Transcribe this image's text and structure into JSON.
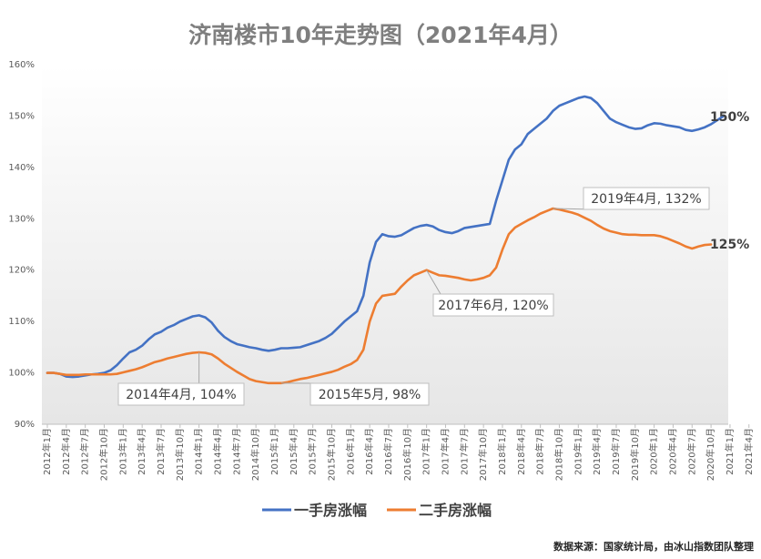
{
  "chart_data": {
    "type": "line",
    "title": "济南楼市10年走势图（2021年4月）",
    "source": "数据来源：国家统计局，由冰山指数团队整理",
    "ylim": [
      90,
      160
    ],
    "yticks": [
      "90%",
      "100%",
      "110%",
      "120%",
      "130%",
      "140%",
      "150%",
      "160%"
    ],
    "ytick_values": [
      90,
      100,
      110,
      120,
      130,
      140,
      150,
      160
    ],
    "xlabel": "",
    "ylabel": "",
    "grid": false,
    "legend_position": "bottom",
    "x_tick_labels": [
      "2012年1月",
      "2012年4月",
      "2012年7月",
      "2012年10月",
      "2013年1月",
      "2013年4月",
      "2013年7月",
      "2013年10月",
      "2014年1月",
      "2014年4月",
      "2014年7月",
      "2014年10月",
      "2015年1月",
      "2015年4月",
      "2015年7月",
      "2015年10月",
      "2016年1月",
      "2016年4月",
      "2016年7月",
      "2016年10月",
      "2017年1月",
      "2017年4月",
      "2017年7月",
      "2017年10月",
      "2018年1月",
      "2018年4月",
      "2018年7月",
      "2018年10月",
      "2019年1月",
      "2019年4月",
      "2019年7月",
      "2019年10月",
      "2020年1月",
      "2020年4月",
      "2020年7月",
      "2020年10月",
      "2021年1月",
      "2021年4月"
    ],
    "series": [
      {
        "name": "一手房涨幅",
        "color": "#4472c4",
        "end_label": "150%",
        "values": [
          100,
          100,
          99.8,
          99.3,
          99.2,
          99.3,
          99.5,
          99.7,
          99.8,
          100,
          100.5,
          101.5,
          102.8,
          104,
          104.5,
          105.3,
          106.5,
          107.5,
          108,
          108.8,
          109.3,
          110,
          110.5,
          111,
          111.2,
          110.8,
          109.8,
          108.2,
          107,
          106.2,
          105.6,
          105.3,
          105,
          104.8,
          104.5,
          104.3,
          104.5,
          104.8,
          104.8,
          104.9,
          105,
          105.4,
          105.8,
          106.2,
          106.8,
          107.6,
          108.8,
          110,
          111,
          112,
          115,
          121.5,
          125.5,
          127,
          126.6,
          126.5,
          126.8,
          127.5,
          128.2,
          128.6,
          128.8,
          128.5,
          127.8,
          127.4,
          127.2,
          127.6,
          128.2,
          128.4,
          128.6,
          128.8,
          129,
          133.5,
          137.5,
          141.5,
          143.5,
          144.5,
          146.5,
          147.5,
          148.5,
          149.5,
          151,
          152,
          152.5,
          153,
          153.5,
          153.8,
          153.5,
          152.5,
          151,
          149.5,
          148.8,
          148.3,
          147.8,
          147.5,
          147.6,
          148.2,
          148.6,
          148.5,
          148.2,
          148,
          147.8,
          147.3,
          147.1,
          147.4,
          147.8,
          148.4,
          149.2,
          150
        ]
      },
      {
        "name": "二手房涨幅",
        "color": "#ed7d31",
        "end_label": "125%",
        "values": [
          100,
          100,
          99.8,
          99.6,
          99.6,
          99.6,
          99.7,
          99.7,
          99.7,
          99.7,
          99.7,
          99.8,
          100.1,
          100.4,
          100.7,
          101.1,
          101.6,
          102.1,
          102.4,
          102.8,
          103.1,
          103.4,
          103.7,
          103.9,
          104,
          103.9,
          103.6,
          102.8,
          101.8,
          101,
          100.2,
          99.5,
          98.8,
          98.4,
          98.2,
          98,
          98,
          98,
          98.2,
          98.5,
          98.8,
          99,
          99.3,
          99.6,
          99.9,
          100.2,
          100.6,
          101.2,
          101.7,
          102.5,
          104.5,
          110,
          113.5,
          115,
          115.2,
          115.4,
          116.8,
          118,
          119,
          119.5,
          120,
          119.5,
          119,
          118.9,
          118.7,
          118.5,
          118.2,
          118,
          118.2,
          118.5,
          119,
          120.5,
          124,
          127,
          128.3,
          129,
          129.7,
          130.3,
          131,
          131.5,
          132,
          131.8,
          131.5,
          131.2,
          130.8,
          130.2,
          129.6,
          128.8,
          128.1,
          127.6,
          127.3,
          127,
          126.9,
          126.9,
          126.8,
          126.8,
          126.8,
          126.6,
          126.2,
          125.7,
          125.2,
          124.6,
          124.2,
          124.6,
          124.9,
          125
        ]
      }
    ],
    "annotations": [
      {
        "text": "2014年4月, 104%",
        "series": 1,
        "index": 24
      },
      {
        "text": "2015年5月, 98%",
        "series": 1,
        "index": 37
      },
      {
        "text": "2017年6月, 120%",
        "series": 1,
        "index": 60
      },
      {
        "text": "2019年4月, 132%",
        "series": 1,
        "index": 80
      }
    ]
  }
}
